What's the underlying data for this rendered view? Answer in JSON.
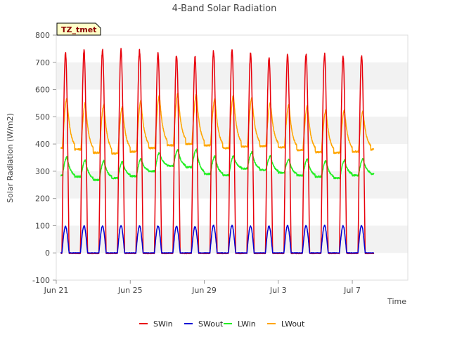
{
  "chart_data": {
    "type": "line",
    "title": "4-Band Solar Radiation",
    "xlabel": "Time",
    "ylabel": "Solar Radiation (W/m2)",
    "annotation": "TZ_tmet",
    "ylim": [
      -100,
      800
    ],
    "yticks": [
      -100,
      0,
      100,
      200,
      300,
      400,
      500,
      600,
      700,
      800
    ],
    "xlim": [
      "2016-06-21T00:00",
      "2016-07-10T00:00"
    ],
    "xticks": [
      {
        "label": "Jun 21",
        "date": "2016-06-21"
      },
      {
        "label": "Jun 25",
        "date": "2016-06-25"
      },
      {
        "label": "Jun 29",
        "date": "2016-06-29"
      },
      {
        "label": "Jul 3",
        "date": "2016-07-03"
      },
      {
        "label": "Jul 7",
        "date": "2016-07-07"
      }
    ],
    "grid": "horizontal bands",
    "legend_position": "bottom",
    "x": [
      "2016-06-21",
      "2016-06-22",
      "2016-06-23",
      "2016-06-24",
      "2016-06-25",
      "2016-06-26",
      "2016-06-27",
      "2016-06-28",
      "2016-06-29",
      "2016-06-30",
      "2016-07-01",
      "2016-07-02",
      "2016-07-03",
      "2016-07-04",
      "2016-07-05",
      "2016-07-06",
      "2016-07-07",
      "2016-07-08"
    ],
    "series": [
      {
        "name": "SWin",
        "color": "#e8000b",
        "stat": "daily peak (midday)",
        "night": -2,
        "values": [
          735,
          743,
          745,
          745,
          742,
          735,
          727,
          718,
          740,
          743,
          732,
          720,
          730,
          732,
          730,
          722,
          725,
          725
        ]
      },
      {
        "name": "SWout",
        "color": "#0000d4",
        "stat": "daily peak (midday)",
        "night": 0,
        "values": [
          97,
          99,
          98,
          100,
          99,
          99,
          98,
          96,
          101,
          101,
          99,
          98,
          100,
          100,
          101,
          99,
          100,
          100
        ]
      },
      {
        "name": "LWin",
        "color": "#22ee22",
        "stat": "daily min (night) / max (afternoon)",
        "values_min": [
          285,
          280,
          268,
          275,
          282,
          300,
          320,
          315,
          290,
          285,
          310,
          305,
          295,
          285,
          280,
          275,
          285,
          290
        ],
        "values_max": [
          352,
          340,
          338,
          335,
          345,
          368,
          378,
          380,
          355,
          355,
          370,
          355,
          345,
          345,
          338,
          340,
          345,
          345
        ]
      },
      {
        "name": "LWout",
        "color": "#ffa500",
        "stat": "daily min (night) / max (afternoon)",
        "values_min": [
          385,
          380,
          368,
          365,
          372,
          385,
          395,
          400,
          395,
          385,
          390,
          392,
          388,
          378,
          370,
          368,
          372,
          380
        ],
        "values_max": [
          568,
          553,
          545,
          537,
          560,
          578,
          588,
          583,
          565,
          578,
          570,
          553,
          545,
          540,
          525,
          525,
          520,
          520
        ]
      }
    ]
  }
}
